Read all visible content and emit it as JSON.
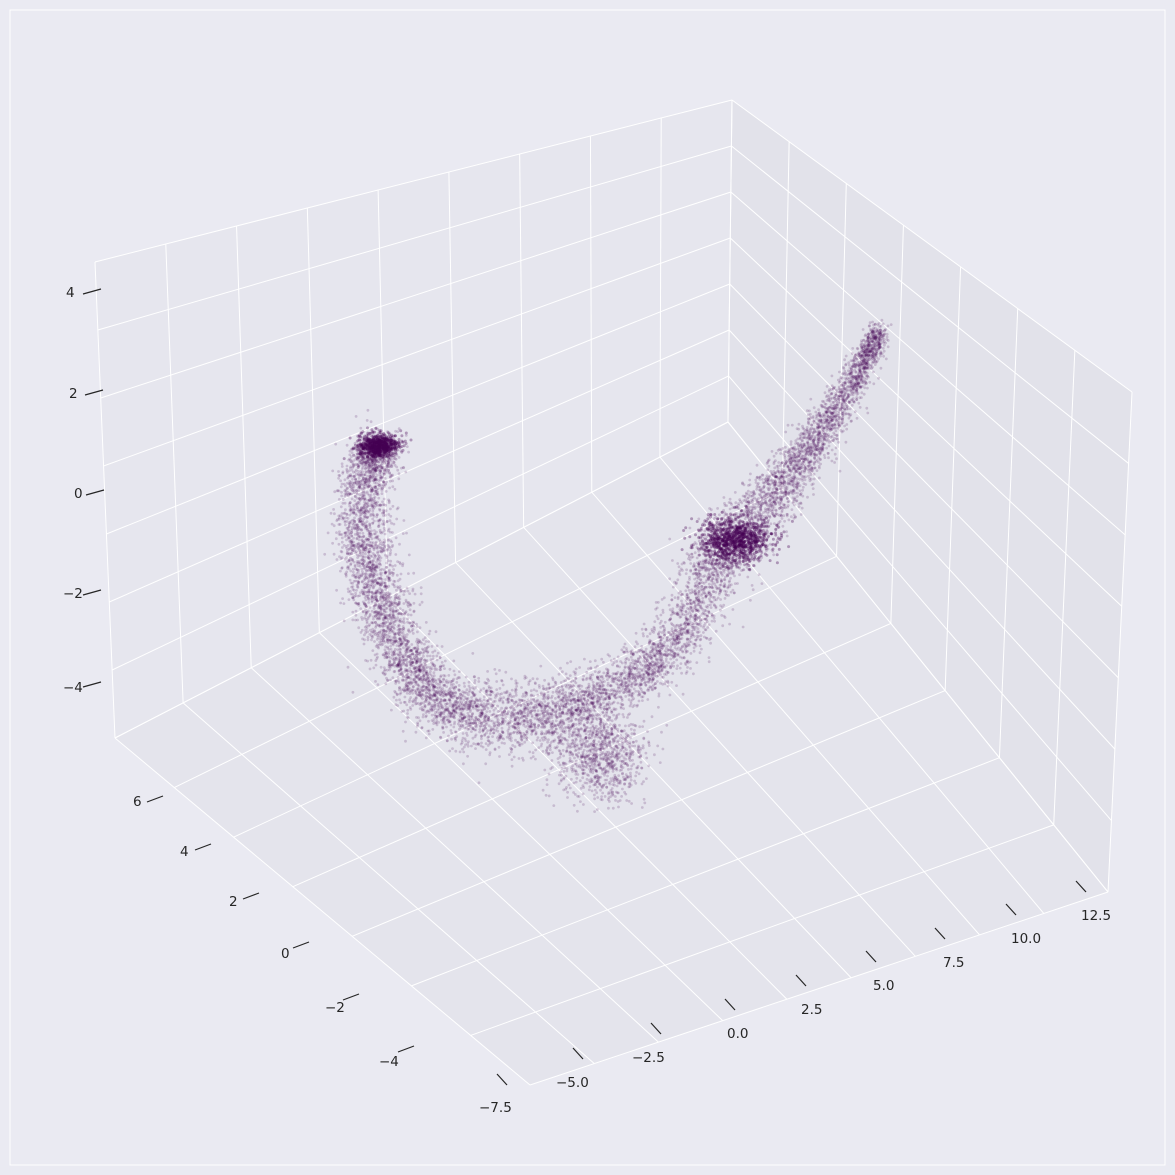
{
  "chart_data": {
    "type": "scatter",
    "projection": "3d",
    "title": "",
    "xlabel": "",
    "ylabel": "",
    "zlabel": "",
    "grid": true,
    "point_color": "#440154",
    "point_alpha": 0.18,
    "x_ticks": [
      "−7.5",
      "−5.0",
      "−2.5",
      "0.0",
      "2.5",
      "5.0",
      "7.5",
      "10.0",
      "12.5"
    ],
    "y_ticks": [
      "−4",
      "−2",
      "0",
      "2",
      "4",
      "6"
    ],
    "z_ticks": [
      "−4",
      "−2",
      "0",
      "2",
      "4"
    ],
    "xlim": [
      -9.5,
      13.5
    ],
    "ylim": [
      -5.2,
      7.2
    ],
    "zlim": [
      -5,
      4.6
    ],
    "point_count_approx": 60000,
    "trajectory_points": [
      {
        "x": -4.0,
        "y": 6.0,
        "z": 0.9
      },
      {
        "x": -3.8,
        "y": 5.6,
        "z": -0.5
      },
      {
        "x": -3.5,
        "y": 5.0,
        "z": -1.8
      },
      {
        "x": -3.0,
        "y": 4.0,
        "z": -2.8
      },
      {
        "x": -2.5,
        "y": 2.8,
        "z": -3.4
      },
      {
        "x": -1.8,
        "y": 1.5,
        "z": -3.6
      },
      {
        "x": -0.8,
        "y": 0.5,
        "z": -3.5
      },
      {
        "x": 0.5,
        "y": -0.2,
        "z": -3.2
      },
      {
        "x": 2.0,
        "y": -0.8,
        "z": -2.7
      },
      {
        "x": 3.5,
        "y": -1.2,
        "z": -2.0
      },
      {
        "x": 5.0,
        "y": -1.5,
        "z": -1.2
      },
      {
        "x": 6.5,
        "y": -1.8,
        "z": -0.3
      },
      {
        "x": 8.0,
        "y": -2.2,
        "z": 0.8
      },
      {
        "x": 9.5,
        "y": -2.6,
        "z": 2.0
      }
    ]
  }
}
